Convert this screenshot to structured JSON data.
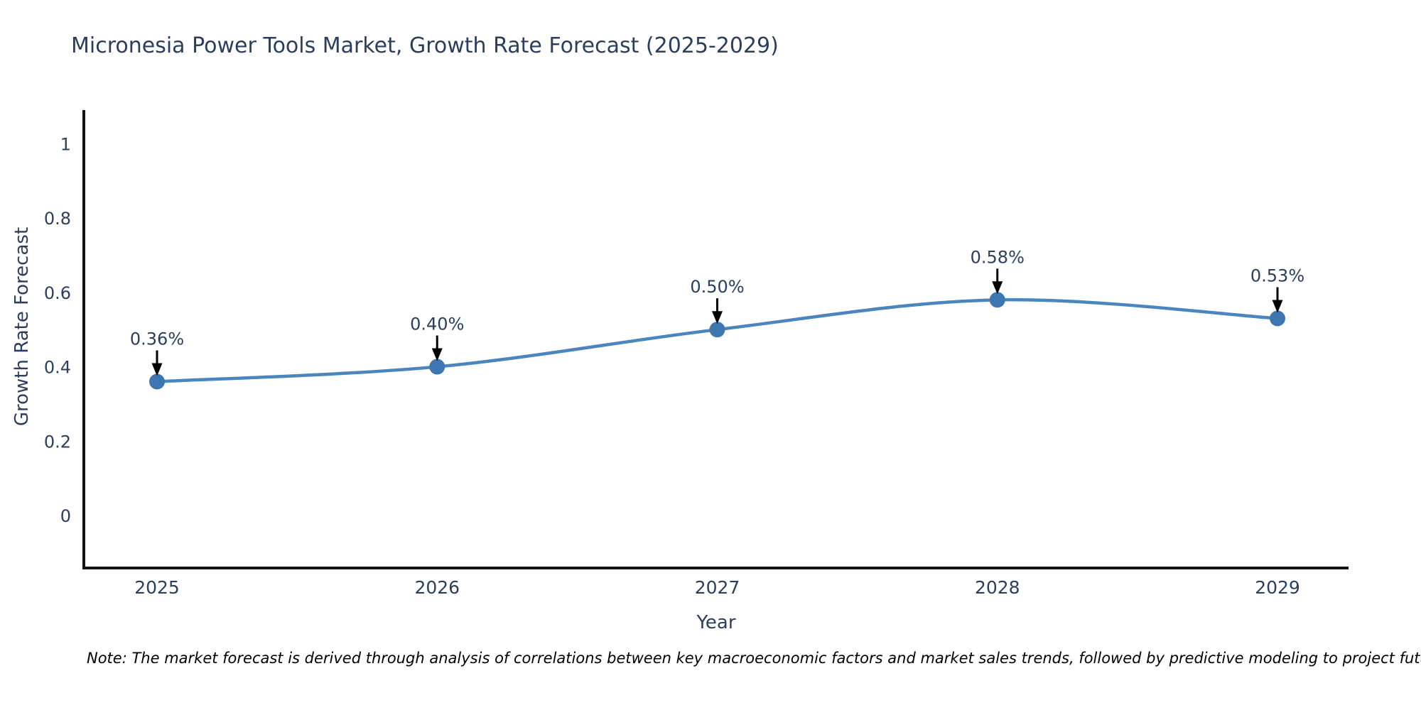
{
  "note": "Note: The market forecast is derived through analysis of correlations between key macroeconomic factors and market sales trends, followed by predictive modeling to project future sales",
  "chart_data": {
    "type": "line",
    "title": "Micronesia Power Tools Market, Growth Rate Forecast (2025-2029)",
    "xlabel": "Year",
    "ylabel": "Growth Rate Forecast",
    "x": [
      "2025",
      "2026",
      "2027",
      "2028",
      "2029"
    ],
    "values": [
      0.36,
      0.4,
      0.5,
      0.58,
      0.53
    ],
    "point_labels": [
      "0.36%",
      "0.40%",
      "0.50%",
      "0.58%",
      "0.53%"
    ],
    "y_ticks": [
      "0",
      "0.2",
      "0.4",
      "0.6",
      "0.8",
      "1"
    ],
    "y_tick_values": [
      0,
      0.2,
      0.4,
      0.6,
      0.8,
      1
    ],
    "ylim": [
      -0.14,
      1.09
    ],
    "line_shape": "spline",
    "grid": false,
    "legend": false,
    "annotations": "value labels with downward arrows above each point",
    "colors": {
      "line": "#4a85bf",
      "marker": "#3d76b0",
      "arrow": "#000000",
      "text": "#2a3f5f",
      "axis": "#111111"
    }
  }
}
